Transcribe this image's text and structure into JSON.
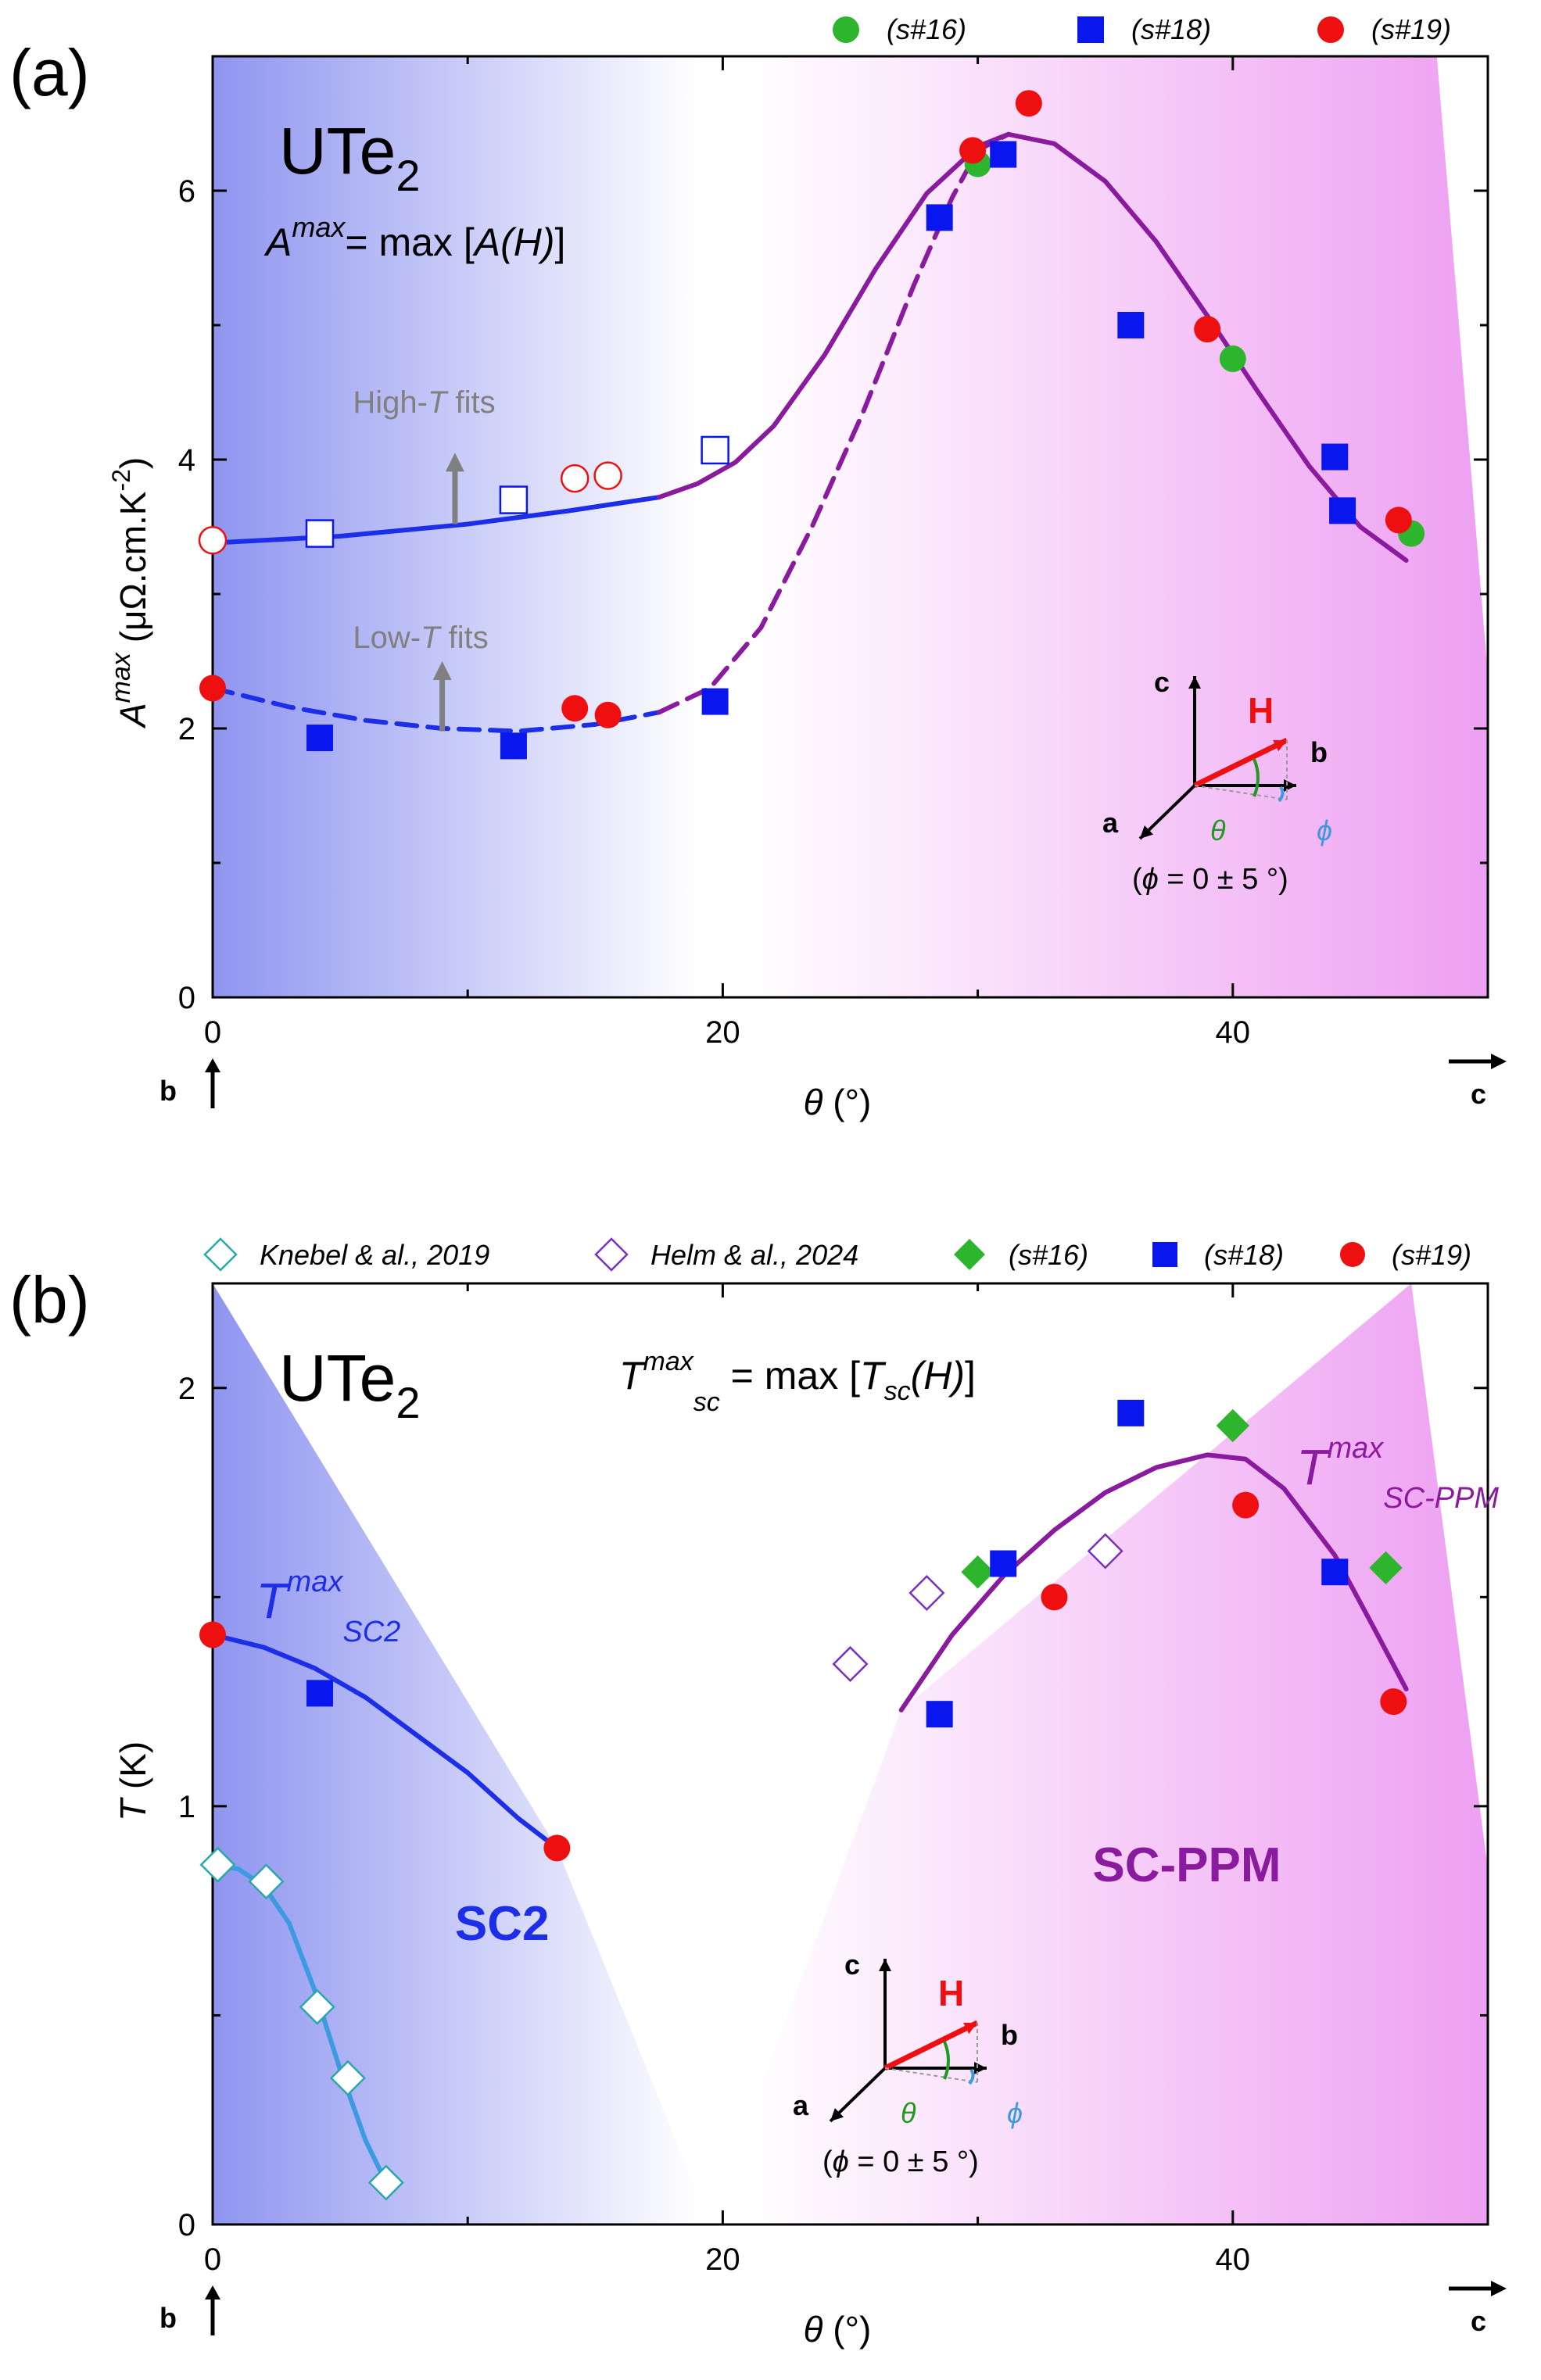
{
  "colors": {
    "s16": "#2db52d",
    "s18": "#0a16ee",
    "s19": "#ee1010",
    "purple": "#8a1a9e",
    "blue": "#1c2ee8",
    "lightblue": "#3d9ae0",
    "teal": "#2aa8a8",
    "violet": "#7a2fbf",
    "gray": "#808080",
    "region_blue": "#8f95f0",
    "region_pink": "#ee9ff2"
  },
  "chart_data": [
    {
      "panel": "(a)",
      "type": "scatter",
      "material": "UTe",
      "material_sub": "2",
      "formula_main": "A",
      "formula_sup": "max",
      "formula_rest": "= max [",
      "formula_arg": "A(H)",
      "formula_end": "]",
      "xlabel_sym": "θ",
      "xlabel_unit": "(°)",
      "ylabel_sym": "A",
      "ylabel_sup": "max",
      "ylabel_unit": "(μΩ.cm.K",
      "ylabel_exp": "-2",
      "ylabel_close": ")",
      "xlim": [
        0,
        50
      ],
      "ylim": [
        0,
        7
      ],
      "xticks": [
        "0",
        "20",
        "40"
      ],
      "yticks": [
        "0",
        "2",
        "4",
        "6"
      ],
      "axis_end_left": "b",
      "axis_end_right": "c",
      "annotations": {
        "high": "High-",
        "high_t": "T",
        "high_rest": " fits",
        "low": "Low-",
        "low_t": "T",
        "low_rest": " fits"
      },
      "legend": [
        {
          "label": "(s#16)",
          "marker": "circle",
          "color": "#2db52d"
        },
        {
          "label": "(s#18)",
          "marker": "square",
          "color": "#0a16ee"
        },
        {
          "label": "(s#19)",
          "marker": "circle",
          "color": "#ee1010"
        }
      ],
      "series": [
        {
          "name": "(s#16)",
          "marker": "circle",
          "filled": true,
          "color": "#2db52d",
          "points": [
            [
              30,
              6.2
            ],
            [
              40,
              4.75
            ],
            [
              47,
              3.45
            ]
          ]
        },
        {
          "name": "(s#18) high-T",
          "marker": "square",
          "filled": false,
          "color": "#0a16ee",
          "points": [
            [
              4.2,
              3.45
            ],
            [
              11.8,
              3.7
            ],
            [
              19.7,
              4.07
            ]
          ]
        },
        {
          "name": "(s#18) low-T",
          "marker": "square",
          "filled": true,
          "color": "#0a16ee",
          "points": [
            [
              4.2,
              1.93
            ],
            [
              11.8,
              1.87
            ],
            [
              19.7,
              2.2
            ],
            [
              28.5,
              5.8
            ],
            [
              31,
              6.27
            ],
            [
              36,
              5.0
            ],
            [
              44,
              4.02
            ],
            [
              44.3,
              3.62
            ]
          ]
        },
        {
          "name": "(s#19) high-T",
          "marker": "circle",
          "filled": false,
          "color": "#ee1010",
          "points": [
            [
              0,
              3.4
            ],
            [
              14.2,
              3.86
            ],
            [
              15.5,
              3.88
            ]
          ]
        },
        {
          "name": "(s#19) low-T",
          "marker": "circle",
          "filled": true,
          "color": "#ee1010",
          "points": [
            [
              0,
              2.3
            ],
            [
              14.2,
              2.15
            ],
            [
              15.5,
              2.1
            ],
            [
              29.8,
              6.3
            ],
            [
              32,
              6.65
            ],
            [
              39,
              4.97
            ],
            [
              46.5,
              3.55
            ]
          ]
        }
      ],
      "curves": [
        {
          "name": "high-T fit",
          "style": "solid",
          "color": "#1c2ee8",
          "points": [
            [
              0,
              3.38
            ],
            [
              5,
              3.43
            ],
            [
              10,
              3.52
            ],
            [
              14,
              3.62
            ],
            [
              17.5,
              3.72
            ]
          ]
        },
        {
          "name": "high-T fit (purple)",
          "style": "solid",
          "color": "#8a1a9e",
          "points": [
            [
              17.5,
              3.72
            ],
            [
              19,
              3.82
            ],
            [
              20.5,
              3.98
            ],
            [
              22,
              4.25
            ],
            [
              24,
              4.78
            ],
            [
              26,
              5.42
            ],
            [
              28,
              5.98
            ],
            [
              30,
              6.33
            ],
            [
              31.2,
              6.42
            ],
            [
              33,
              6.35
            ],
            [
              35,
              6.07
            ],
            [
              37,
              5.62
            ],
            [
              39,
              5.07
            ],
            [
              41,
              4.5
            ],
            [
              43,
              3.95
            ],
            [
              45,
              3.5
            ],
            [
              46.8,
              3.25
            ]
          ]
        },
        {
          "name": "low-T fit",
          "style": "dashed",
          "color": "#1c2ee8",
          "points": [
            [
              0,
              2.3
            ],
            [
              3,
              2.16
            ],
            [
              6,
              2.06
            ],
            [
              9,
              2.0
            ],
            [
              12,
              1.98
            ],
            [
              15,
              2.03
            ],
            [
              17.5,
              2.12
            ]
          ]
        },
        {
          "name": "low-T fit (purple)",
          "style": "dashed",
          "color": "#8a1a9e",
          "points": [
            [
              17.5,
              2.12
            ],
            [
              19.5,
              2.3
            ],
            [
              21.5,
              2.75
            ],
            [
              23.5,
              3.5
            ],
            [
              25.5,
              4.35
            ],
            [
              27.5,
              5.3
            ],
            [
              29,
              5.95
            ],
            [
              30,
              6.3
            ],
            [
              31.2,
              6.42
            ]
          ]
        }
      ],
      "regions": {
        "sc2_boundary": [
          [
            0,
            7
          ],
          [
            20,
            7
          ],
          [
            20,
            0
          ],
          [
            0,
            0
          ]
        ],
        "ppm_boundary": [
          [
            20,
            7
          ],
          [
            48,
            7
          ],
          [
            50,
            2.4
          ],
          [
            50,
            0
          ],
          [
            20,
            0
          ]
        ]
      },
      "inset": {
        "c": "c",
        "H": "H",
        "b": "b",
        "a": "a",
        "theta": "θ",
        "phi": "ϕ",
        "caption_open": "(",
        "caption_phi": "ϕ",
        "caption_rest": " = 0 ± 5 °)"
      }
    },
    {
      "panel": "(b)",
      "type": "scatter",
      "material": "UTe",
      "material_sub": "2",
      "formula_main": "T",
      "formula_sup": "max",
      "formula_sub": "sc",
      "formula_rest": " = max [",
      "formula_arg": "T",
      "formula_arg_sub": "sc",
      "formula_arg_rest": "(H)",
      "formula_end": "]",
      "xlabel_sym": "θ",
      "xlabel_unit": "(°)",
      "ylabel_sym": "T",
      "ylabel_unit": " (K)",
      "xlim": [
        0,
        50
      ],
      "ylim": [
        0,
        2.25
      ],
      "xticks": [
        "0",
        "20",
        "40"
      ],
      "yticks": [
        "0",
        "1",
        "2"
      ],
      "axis_end_left": "b",
      "axis_end_right": "c",
      "region_labels": {
        "sc2": "SC2",
        "ppm": "SC-PPM"
      },
      "curve_labels": {
        "sc2_main": "T",
        "sc2_sup": "max",
        "sc2_sub": "SC2",
        "ppm_main": "T",
        "ppm_sup": "max",
        "ppm_sub": "SC-PPM"
      },
      "legend": [
        {
          "label": "Knebel & al., 2019",
          "marker": "diamond-open",
          "color": "#2aa8a8"
        },
        {
          "label": "Helm & al., 2024",
          "marker": "diamond-open",
          "color": "#7a2fbf"
        },
        {
          "label": "(s#16)",
          "marker": "diamond",
          "color": "#2db52d"
        },
        {
          "label": "(s#18)",
          "marker": "square",
          "color": "#0a16ee"
        },
        {
          "label": "(s#19)",
          "marker": "circle",
          "color": "#ee1010"
        }
      ],
      "series": [
        {
          "name": "Knebel & al., 2019",
          "marker": "diamond",
          "filled": false,
          "color": "#2aa8a8",
          "points": [
            [
              0.2,
              0.86
            ],
            [
              2.1,
              0.82
            ],
            [
              4.1,
              0.52
            ],
            [
              5.3,
              0.35
            ],
            [
              6.8,
              0.1
            ]
          ]
        },
        {
          "name": "Helm & al., 2024",
          "marker": "diamond",
          "filled": false,
          "color": "#7a2fbf",
          "points": [
            [
              25,
              1.34
            ],
            [
              28,
              1.51
            ],
            [
              35,
              1.61
            ]
          ]
        },
        {
          "name": "(s#16)",
          "marker": "diamond",
          "filled": true,
          "color": "#2db52d",
          "points": [
            [
              30,
              1.56
            ],
            [
              40,
              1.91
            ],
            [
              46,
              1.57
            ]
          ]
        },
        {
          "name": "(s#18)",
          "marker": "square",
          "filled": true,
          "color": "#0a16ee",
          "points": [
            [
              4.2,
              1.27
            ],
            [
              28.5,
              1.22
            ],
            [
              31,
              1.58
            ],
            [
              36,
              1.94
            ],
            [
              44,
              1.56
            ]
          ]
        },
        {
          "name": "(s#19)",
          "marker": "circle",
          "filled": true,
          "color": "#ee1010",
          "points": [
            [
              0,
              1.41
            ],
            [
              13.5,
              0.9
            ],
            [
              33,
              1.5
            ],
            [
              40.5,
              1.72
            ],
            [
              46.3,
              1.25
            ]
          ]
        }
      ],
      "curves": [
        {
          "name": "SC2 fit",
          "style": "solid",
          "color": "#1c2ee8",
          "points": [
            [
              0,
              1.41
            ],
            [
              2,
              1.38
            ],
            [
              4,
              1.33
            ],
            [
              6,
              1.26
            ],
            [
              8,
              1.17
            ],
            [
              10,
              1.08
            ],
            [
              12,
              0.97
            ],
            [
              13.5,
              0.9
            ]
          ]
        },
        {
          "name": "Knebel fit",
          "style": "solid",
          "color": "#3d9ae0",
          "points": [
            [
              0,
              0.86
            ],
            [
              1,
              0.85
            ],
            [
              2,
              0.81
            ],
            [
              3,
              0.72
            ],
            [
              4,
              0.56
            ],
            [
              5,
              0.37
            ],
            [
              6,
              0.2
            ],
            [
              6.8,
              0.1
            ]
          ]
        },
        {
          "name": "SC-PPM fit",
          "style": "solid",
          "color": "#8a1a9e",
          "points": [
            [
              27,
              1.23
            ],
            [
              29,
              1.41
            ],
            [
              31,
              1.55
            ],
            [
              33,
              1.66
            ],
            [
              35,
              1.75
            ],
            [
              37,
              1.81
            ],
            [
              39,
              1.84
            ],
            [
              40.5,
              1.83
            ],
            [
              42,
              1.76
            ],
            [
              44,
              1.6
            ],
            [
              45.5,
              1.43
            ],
            [
              46.8,
              1.28
            ]
          ]
        }
      ],
      "regions": {
        "sc2_boundary": [
          [
            0,
            2.25
          ],
          [
            13.5,
            0.9
          ],
          [
            19.5,
            0
          ],
          [
            0,
            0
          ]
        ],
        "ppm_boundary": [
          [
            19.5,
            0
          ],
          [
            27,
            1.23
          ],
          [
            47,
            2.25
          ],
          [
            50,
            0.85
          ],
          [
            50,
            0
          ]
        ]
      },
      "inset": {
        "c": "c",
        "H": "H",
        "b": "b",
        "a": "a",
        "theta": "θ",
        "phi": "ϕ",
        "caption_open": "(",
        "caption_phi": "ϕ",
        "caption_rest": " = 0 ± 5 °)"
      }
    }
  ]
}
